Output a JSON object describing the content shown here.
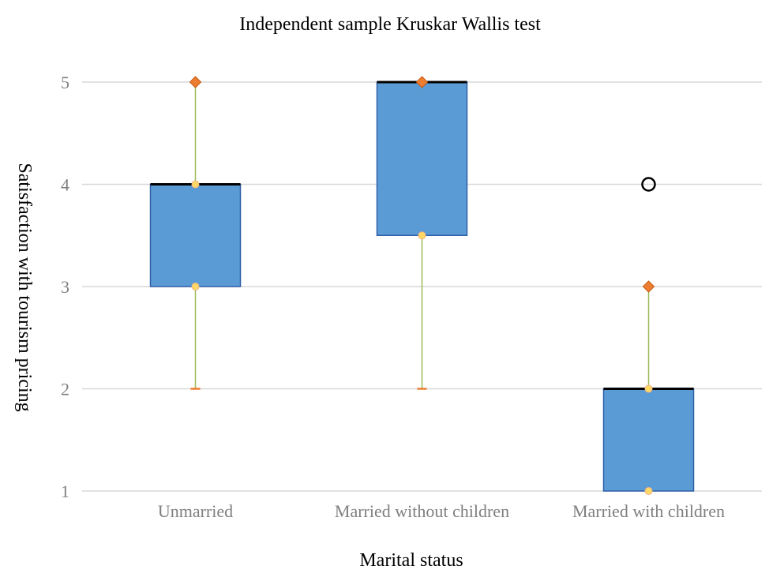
{
  "chart_data": {
    "type": "boxplot",
    "title": "Independent sample Kruskar Wallis test",
    "xlabel": "Marital status",
    "ylabel": "Satisfaction with tourism pricing",
    "categories": [
      "Unmarried",
      "Married without children",
      "Married with children"
    ],
    "ylim": [
      1,
      5
    ],
    "yticks": [
      "1",
      "2",
      "3",
      "4",
      "5"
    ],
    "grid": true,
    "boxes": [
      {
        "category": "Unmarried",
        "min": 2,
        "q1": 3,
        "median": 4,
        "q3": 4,
        "max": 5,
        "outliers": []
      },
      {
        "category": "Married without children",
        "min": 2,
        "q1": 3.5,
        "median": 5,
        "q3": 5,
        "max": 5,
        "outliers": []
      },
      {
        "category": "Married with children",
        "min": 1,
        "q1": 1,
        "median": 2,
        "q3": 2,
        "max": 3,
        "outliers": [
          4
        ]
      }
    ],
    "colors": {
      "box_fill": "#5b9bd5",
      "box_stroke": "#2e5fa8",
      "median": "#000000",
      "whisker": "#9bbb59",
      "max_marker": "#ed7d31",
      "min_marker": "#ed7d31",
      "quartile_marker": "#ffd966",
      "grid": "#d9d9d9",
      "outlier": "#000000"
    }
  }
}
